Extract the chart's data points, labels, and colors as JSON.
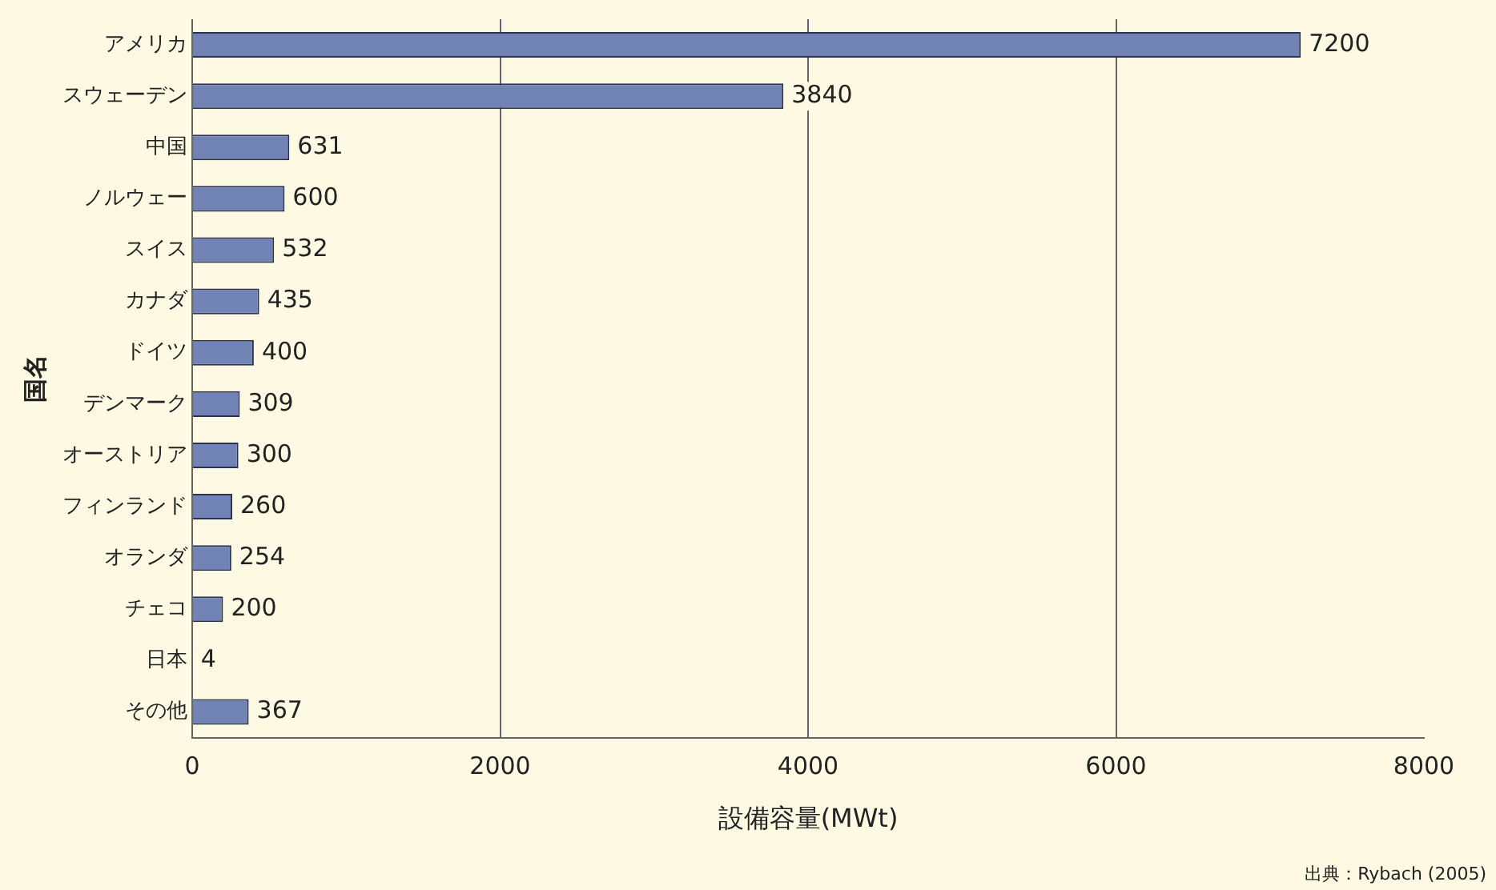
{
  "chart_data": {
    "type": "bar",
    "orientation": "horizontal",
    "categories": [
      "アメリカ",
      "スウェーデン",
      "中国",
      "ノルウェー",
      "スイス",
      "カナダ",
      "ドイツ",
      "デンマーク",
      "オーストリア",
      "フィンランド",
      "オランダ",
      "チェコ",
      "日本",
      "その他"
    ],
    "values": [
      7200,
      3840,
      631,
      600,
      532,
      435,
      400,
      309,
      300,
      260,
      254,
      200,
      4,
      367
    ],
    "color": "#7083b4",
    "xlim": [
      0,
      8000
    ],
    "xticks": [
      0,
      2000,
      4000,
      6000,
      8000
    ],
    "grid": "x",
    "data_labels": true,
    "xlabel": "設備容量(MWt)",
    "ylabel": "国名",
    "annotations": [
      "出典：Rybach (2005)"
    ]
  }
}
